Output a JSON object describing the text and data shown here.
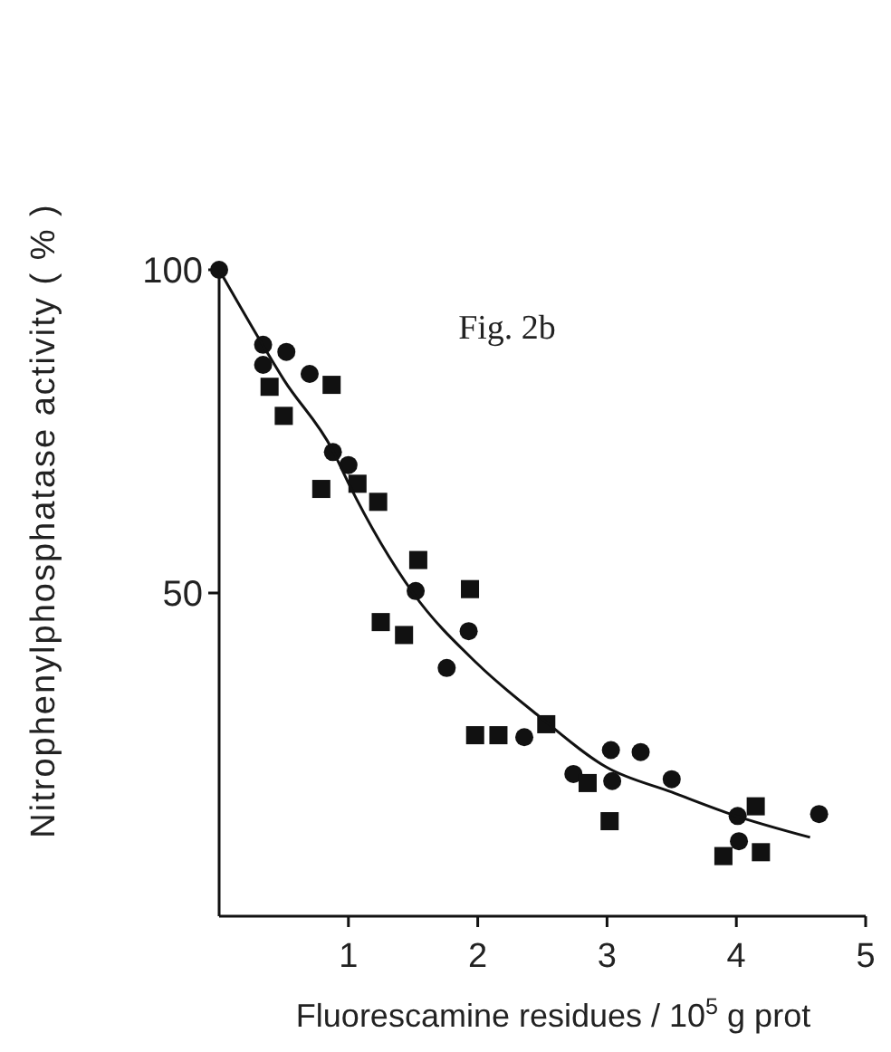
{
  "chart_data": {
    "type": "scatter",
    "xlabel": "Fluorescamine residues / 10$^{5}$ g prot",
    "ylabel": "Nitrophenylphosphatase  activity  ( % )",
    "annotations": [
      "Fig. 2b"
    ],
    "xlim": [
      0,
      5
    ],
    "ylim": [
      0,
      100
    ],
    "xticks": [
      1,
      2,
      3,
      4,
      5
    ],
    "yticks": [
      50,
      100
    ],
    "grid": false,
    "series": [
      {
        "marker": "circle",
        "color": "#111111",
        "x": [
          0,
          0.34,
          0.34,
          0.52,
          0.7,
          0.88,
          1.0,
          1.52,
          1.93,
          1.76,
          2.36,
          2.74,
          3.03,
          3.04,
          3.26,
          3.5,
          4.01,
          4.02,
          4.64
        ],
        "values": [
          100,
          88.4,
          85.3,
          87.3,
          83.9,
          71.8,
          69.8,
          50.3,
          44.1,
          38.4,
          27.7,
          22.0,
          25.7,
          20.9,
          25.4,
          21.2,
          15.5,
          11.6,
          15.8
        ]
      },
      {
        "marker": "square",
        "color": "#111111",
        "x": [
          0.39,
          0.5,
          0.87,
          0.79,
          1.07,
          1.23,
          1.54,
          1.94,
          1.25,
          1.43,
          1.98,
          2.16,
          2.53,
          2.85,
          3.02,
          4.15,
          3.9,
          4.19
        ],
        "values": [
          81.9,
          77.4,
          82.2,
          66.1,
          66.9,
          64.1,
          55.1,
          50.6,
          45.5,
          43.5,
          28.0,
          28.0,
          29.7,
          20.6,
          14.7,
          17.0,
          9.3,
          9.9
        ]
      },
      {
        "type": "line",
        "marker": "none",
        "line_style": "solid",
        "color": "#111111",
        "x": [
          0,
          0.36,
          0.5,
          0.88,
          1,
          1.5,
          2,
          2.47,
          3,
          3.5,
          4,
          4.57
        ],
        "values": [
          100,
          87.6,
          83,
          72,
          67,
          50,
          39,
          31,
          23,
          19.2,
          15.5,
          12.2
        ]
      }
    ]
  }
}
